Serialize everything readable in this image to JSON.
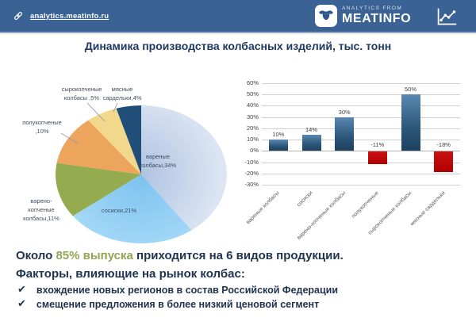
{
  "header": {
    "link": "analytics.meatinfo.ru",
    "logo_small": "ANALYTICS FROM",
    "logo_main": "MEATINFO",
    "bg_color": "#3A6295"
  },
  "title": "Динамика производства колбасных изделий, тыс. тонн",
  "chart_data": [
    {
      "type": "pie",
      "categories": [
        "вареные колбасы",
        "сосиски",
        "варено-копченые колбасы",
        "полукопченые",
        "сырокопченые колбасы",
        "мясные сардельки"
      ],
      "values": [
        34,
        21,
        11,
        10,
        5,
        4
      ],
      "colors": [
        [
          "#AFC3E2",
          "#DEE7F4"
        ],
        [
          "#7CC2F0",
          "#A8DAF8"
        ],
        "#94AB50",
        "#EDA45C",
        "#F2D88D",
        "#1F4E79"
      ],
      "labels": [
        [
          "вареные",
          "колбасы,34%"
        ],
        [
          "сосиски,21%"
        ],
        [
          "варено-",
          "копченые",
          "колбасы,11%"
        ],
        [
          "полукопченые",
          ",10%"
        ],
        [
          "сырокопченые",
          "колбасы ,5%"
        ],
        [
          "мясные",
          "сардельки,4%"
        ]
      ],
      "legend": "none",
      "start_angle_deg": 0
    },
    {
      "type": "bar",
      "categories": [
        "вареные колбасы",
        "сосиски",
        "варено-копченые колбасы",
        "полукопченые",
        "сырокопченые колбасы",
        "мясные сардельки"
      ],
      "values": [
        10,
        14,
        30,
        -11,
        50,
        -18
      ],
      "bar_labels": [
        "10%",
        "14%",
        "30%",
        "-11%",
        "50%",
        "-18%"
      ],
      "yticks": [
        "60%",
        "50%",
        "40%",
        "30%",
        "20%",
        "10%",
        "0%",
        "-10%",
        "-20%",
        "-30%"
      ],
      "ylim": [
        -30,
        60
      ],
      "ytick_step": 10,
      "grid": "on",
      "legend": "none",
      "xlabel": "",
      "ylabel": "",
      "colors": {
        "positive": "#2E5F8A",
        "negative": "#C00000"
      }
    }
  ],
  "footer": {
    "line1_prefix": "Около ",
    "line1_highlight": "85% выпуска",
    "line1_suffix": " приходится на 6 видов продукции.",
    "line2": "Факторы, влияющие на рынок колбас:",
    "check": "✔",
    "bullets": [
      "вхождение новых регионов в состав Российской Федерации",
      "смещение предложения в более низкий ценовой сегмент"
    ],
    "highlight_color": "#8FA652"
  }
}
